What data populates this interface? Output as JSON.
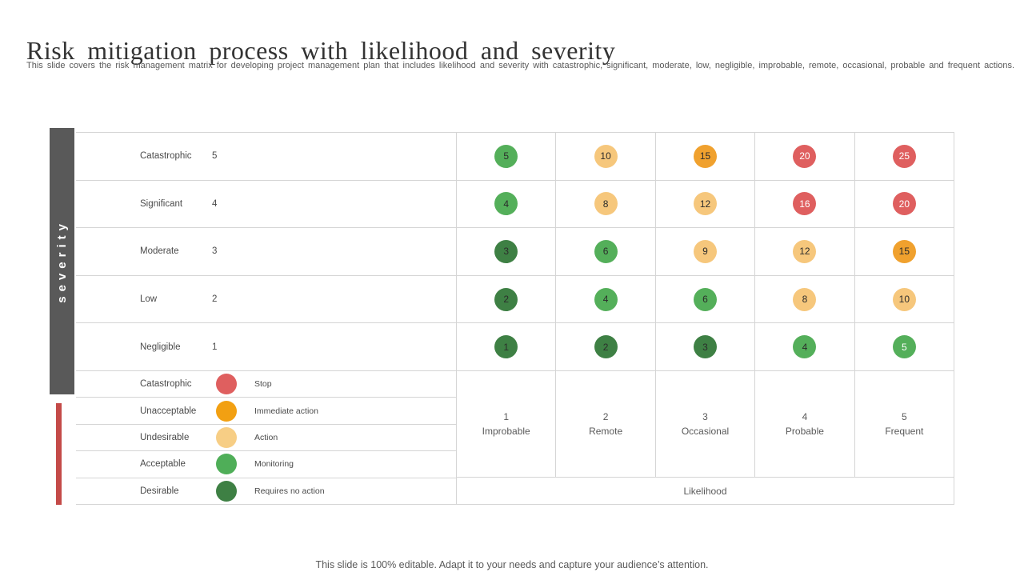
{
  "slide": {
    "title": "Risk mitigation process with likelihood and severity",
    "subtitle": "This slide covers the risk management matrix for developing project management plan that includes likelihood and severity with catastrophic, significant, moderate, low, negligible, improbable, remote, occasional, probable and frequent actions.",
    "footer": "This slide is 100% editable. Adapt it to your needs and capture your audience’s attention."
  },
  "axes": {
    "y_label": "severity",
    "x_label": "Likelihood"
  },
  "palette": {
    "green_dark": "#3E8044",
    "green": "#54AF5A",
    "amber": "#F6C77C",
    "orange": "#F0A12E",
    "red": "#DF5F5F",
    "sidebar_gray": "#595959",
    "accent_red_bar": "#C44A48",
    "grid_line": "#D5D5D5"
  },
  "matrix": {
    "rows": [
      {
        "label": "Catastrophic",
        "level": "5",
        "cells": [
          {
            "value": "5",
            "bg": "#54AF5A",
            "fg": "#2b2b2b"
          },
          {
            "value": "10",
            "bg": "#F6C77C",
            "fg": "#2b2b2b"
          },
          {
            "value": "15",
            "bg": "#F0A12E",
            "fg": "#2b2b2b"
          },
          {
            "value": "20",
            "bg": "#DF5F5F",
            "fg": "#ffffff"
          },
          {
            "value": "25",
            "bg": "#DF5F5F",
            "fg": "#ffffff"
          }
        ]
      },
      {
        "label": "Significant",
        "level": "4",
        "cells": [
          {
            "value": "4",
            "bg": "#54AF5A",
            "fg": "#2b2b2b"
          },
          {
            "value": "8",
            "bg": "#F6C77C",
            "fg": "#2b2b2b"
          },
          {
            "value": "12",
            "bg": "#F6C77C",
            "fg": "#2b2b2b"
          },
          {
            "value": "16",
            "bg": "#DF5F5F",
            "fg": "#ffffff"
          },
          {
            "value": "20",
            "bg": "#DF5F5F",
            "fg": "#ffffff"
          }
        ]
      },
      {
        "label": "Moderate",
        "level": "3",
        "cells": [
          {
            "value": "3",
            "bg": "#3E8044",
            "fg": "#2b2b2b"
          },
          {
            "value": "6",
            "bg": "#54AF5A",
            "fg": "#2b2b2b"
          },
          {
            "value": "9",
            "bg": "#F6C77C",
            "fg": "#2b2b2b"
          },
          {
            "value": "12",
            "bg": "#F6C77C",
            "fg": "#2b2b2b"
          },
          {
            "value": "15",
            "bg": "#F0A12E",
            "fg": "#2b2b2b"
          }
        ]
      },
      {
        "label": "Low",
        "level": "2",
        "cells": [
          {
            "value": "2",
            "bg": "#3E8044",
            "fg": "#2b2b2b"
          },
          {
            "value": "4",
            "bg": "#54AF5A",
            "fg": "#2b2b2b"
          },
          {
            "value": "6",
            "bg": "#54AF5A",
            "fg": "#2b2b2b"
          },
          {
            "value": "8",
            "bg": "#F6C77C",
            "fg": "#2b2b2b"
          },
          {
            "value": "10",
            "bg": "#F6C77C",
            "fg": "#2b2b2b"
          }
        ]
      },
      {
        "label": "Negligible",
        "level": "1",
        "cells": [
          {
            "value": "1",
            "bg": "#3E8044",
            "fg": "#2b2b2b"
          },
          {
            "value": "2",
            "bg": "#3E8044",
            "fg": "#2b2b2b"
          },
          {
            "value": "3",
            "bg": "#3E8044",
            "fg": "#2b2b2b"
          },
          {
            "value": "4",
            "bg": "#54AF5A",
            "fg": "#2b2b2b"
          },
          {
            "value": "5",
            "bg": "#54AF5A",
            "fg": "#ffffff"
          }
        ]
      }
    ]
  },
  "likelihood": {
    "columns": [
      {
        "num": "1",
        "label": "Improbable"
      },
      {
        "num": "2",
        "label": "Remote"
      },
      {
        "num": "3",
        "label": "Occasional"
      },
      {
        "num": "4",
        "label": "Probable"
      },
      {
        "num": "5",
        "label": "Frequent"
      }
    ],
    "axis_label": "Likelihood"
  },
  "legend": {
    "items": [
      {
        "label": "Catastrophic",
        "color": "#DF5F5F",
        "action": "Stop"
      },
      {
        "label": "Unacceptable",
        "color": "#F2A012",
        "action": "Immediate action"
      },
      {
        "label": "Undesirable",
        "color": "#F7CE85",
        "action": "Action"
      },
      {
        "label": "Acceptable",
        "color": "#4FAE58",
        "action": "Monitoring"
      },
      {
        "label": "Desirable",
        "color": "#3E8044",
        "action": "Requires no action"
      }
    ]
  },
  "chart_data": {
    "type": "heatmap",
    "title": "Risk mitigation process with likelihood and severity",
    "xlabel": "Likelihood",
    "ylabel": "severity",
    "x_categories": [
      "1 Improbable",
      "2 Remote",
      "3 Occasional",
      "4 Probable",
      "5 Frequent"
    ],
    "y_categories": [
      "Catastrophic 5",
      "Significant 4",
      "Moderate 3",
      "Low 2",
      "Negligible 1"
    ],
    "values": [
      [
        5,
        10,
        15,
        20,
        25
      ],
      [
        4,
        8,
        12,
        16,
        20
      ],
      [
        3,
        6,
        9,
        12,
        15
      ],
      [
        2,
        4,
        6,
        8,
        10
      ],
      [
        1,
        2,
        3,
        4,
        5
      ]
    ],
    "legend_position": "bottom-left",
    "legend": [
      {
        "label": "Catastrophic",
        "action": "Stop",
        "color": "#DF5F5F"
      },
      {
        "label": "Unacceptable",
        "action": "Immediate action",
        "color": "#F2A012"
      },
      {
        "label": "Undesirable",
        "action": "Action",
        "color": "#F7CE85"
      },
      {
        "label": "Acceptable",
        "action": "Monitoring",
        "color": "#4FAE58"
      },
      {
        "label": "Desirable",
        "action": "Requires no action",
        "color": "#3E8044"
      }
    ]
  }
}
